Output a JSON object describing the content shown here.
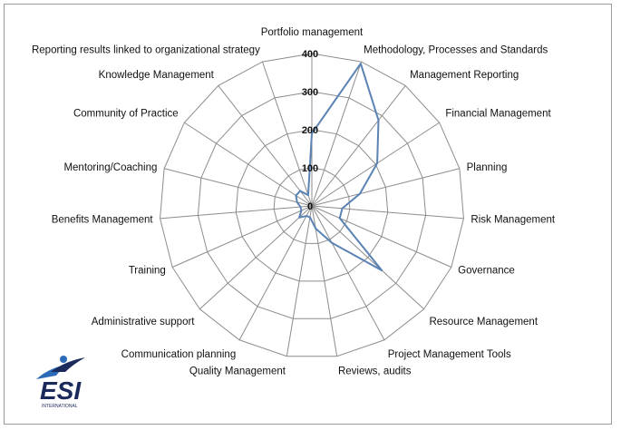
{
  "chart_data": {
    "type": "radar",
    "title": "",
    "axes": [
      "Portfolio management",
      "Methodology, Processes and Standards",
      "Management Reporting",
      "Financial Management",
      "Planning",
      "Risk Management",
      "Governance",
      "Resource Management",
      "Project Management Tools",
      "Reviews, audits",
      "Quality Management",
      "Communication planning",
      "Administrative support",
      "Training",
      "Benefits Management",
      "Mentoring/Coaching",
      "Community of Practice",
      "Knowledge Management",
      "Reporting results linked to organizational strategy"
    ],
    "values": [
      190,
      395,
      285,
      205,
      130,
      80,
      80,
      250,
      110,
      60,
      30,
      30,
      45,
      30,
      30,
      40,
      50,
      50,
      30
    ],
    "ticks": [
      0,
      100,
      200,
      300,
      400
    ],
    "tick_labels": [
      "0",
      "100",
      "200",
      "300",
      "400"
    ],
    "range": [
      0,
      400
    ],
    "series_color": "#5b82b4",
    "grid_color": "#8c8c8c"
  },
  "logo": {
    "text": "ESI",
    "subtext": "INTERNATIONAL",
    "color": "#1a2a5a",
    "accent": "#2a6ab8"
  }
}
